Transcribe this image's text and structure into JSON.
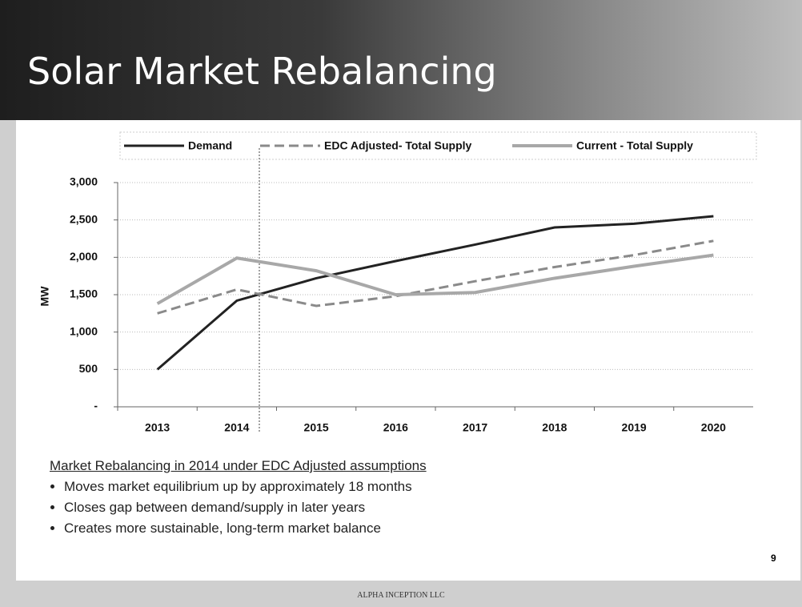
{
  "title": "Solar Market Rebalancing",
  "chart_data": {
    "type": "line",
    "y_label": "MW",
    "categories": [
      "2013",
      "2014",
      "2015",
      "2016",
      "2017",
      "2018",
      "2019",
      "2020"
    ],
    "series": [
      {
        "name": "Demand",
        "color": "#222222",
        "dash": "solid",
        "values": [
          500,
          1420,
          1720,
          1950,
          2170,
          2400,
          2450,
          2550
        ]
      },
      {
        "name": "EDC Adjusted- Total Supply",
        "color": "#8a8a8a",
        "dash": "dashed",
        "values": [
          1250,
          1570,
          1350,
          1480,
          1680,
          1870,
          2030,
          2220
        ]
      },
      {
        "name": "Current - Total Supply",
        "color": "#a8a8a8",
        "dash": "solid",
        "values": [
          1380,
          1990,
          1820,
          1500,
          1530,
          1720,
          1880,
          2030
        ]
      }
    ],
    "ylim": [
      0,
      3000
    ],
    "yticks": [
      {
        "value": 0,
        "label": "-"
      },
      500,
      {
        "value": 1000,
        "label": "1,000"
      },
      {
        "value": 1500,
        "label": "1,500"
      },
      {
        "value": 2000,
        "label": "2,000"
      },
      {
        "value": 2500,
        "label": "2,500"
      },
      {
        "value": 3000,
        "label": "3,000"
      }
    ],
    "grid": true
  },
  "notes": {
    "heading": "Market Rebalancing in 2014 under EDC Adjusted assumptions",
    "bullets": [
      "Moves market equilibrium up by approximately 18 months",
      "Closes gap between demand/supply in later years",
      "Creates more sustainable, long-term market balance"
    ]
  },
  "page_number": "9",
  "footer": "ALPHA INCEPTION LLC"
}
